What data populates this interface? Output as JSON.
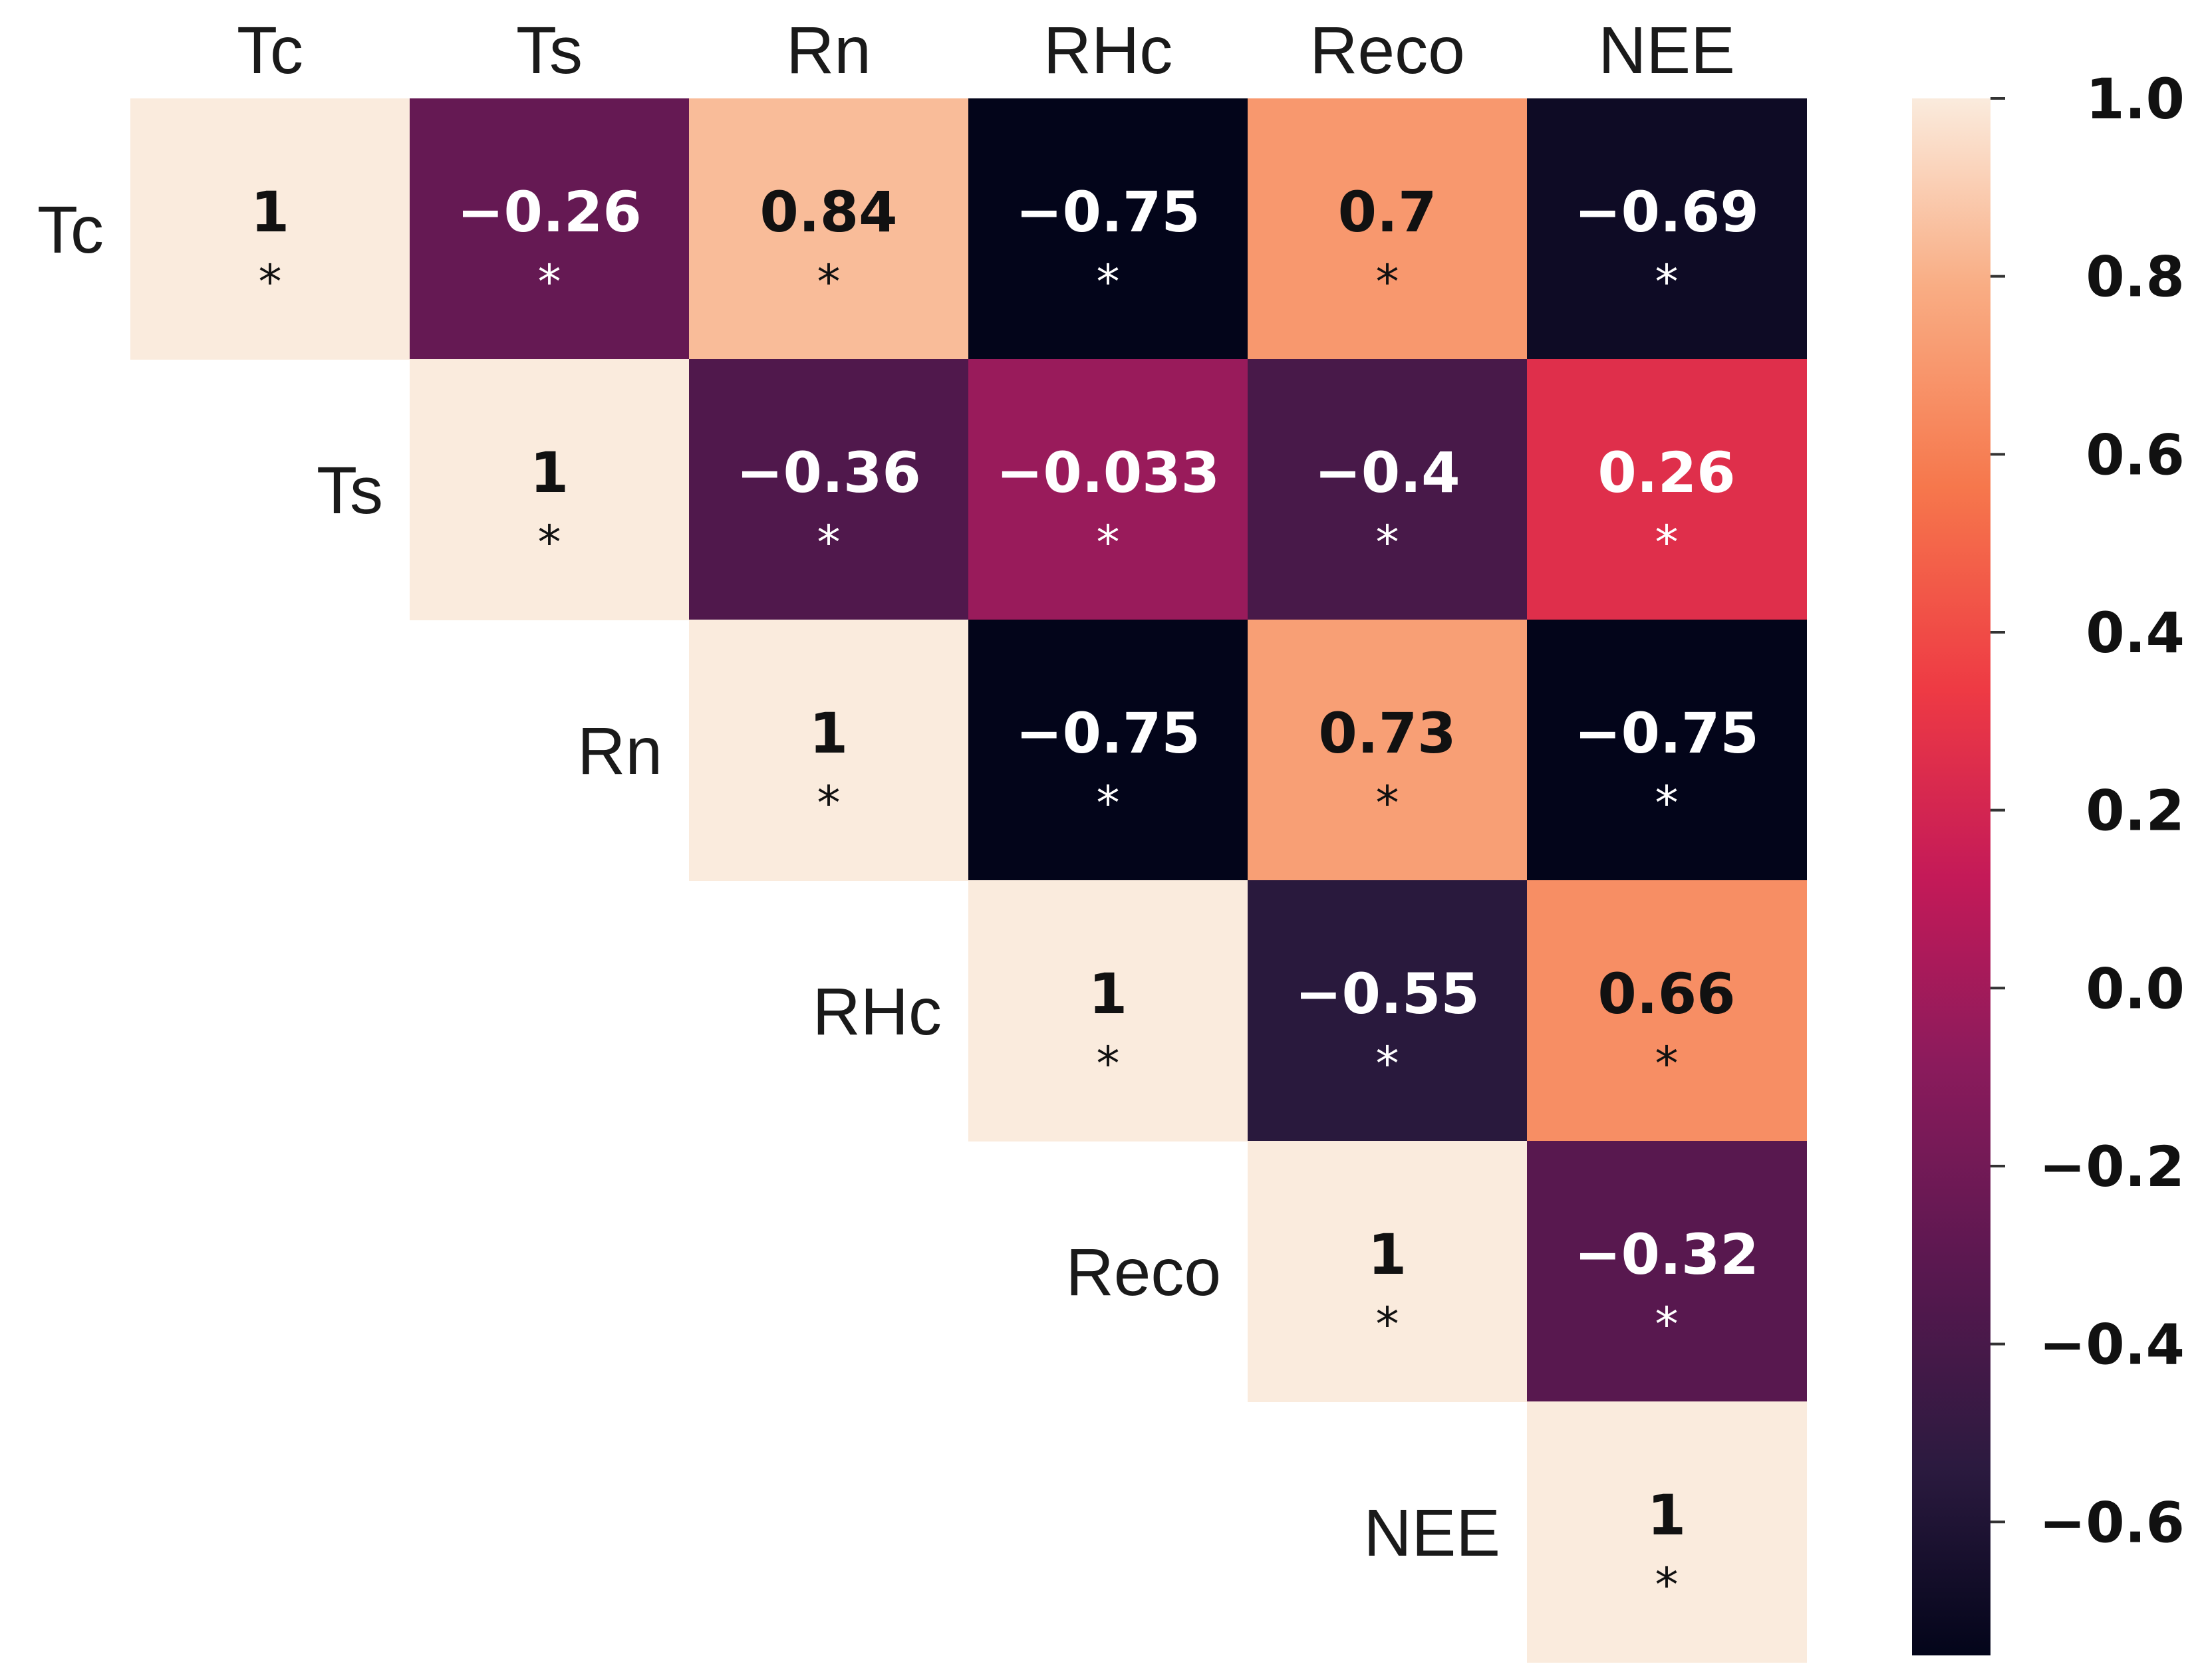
{
  "chart_data": {
    "type": "heatmap",
    "variables": [
      "Tc",
      "Ts",
      "Rn",
      "RHc",
      "Reco",
      "NEE"
    ],
    "matrix": [
      [
        "1",
        "−0.26",
        "0.84",
        "−0.75",
        "0.7",
        "−0.69"
      ],
      [
        null,
        "1",
        "−0.36",
        "−0.033",
        "−0.4",
        "0.26"
      ],
      [
        null,
        null,
        "1",
        "−0.75",
        "0.73",
        "−0.75"
      ],
      [
        null,
        null,
        null,
        "1",
        "−0.55",
        "0.66"
      ],
      [
        null,
        null,
        null,
        null,
        "1",
        "−0.32"
      ],
      [
        null,
        null,
        null,
        null,
        null,
        "1"
      ]
    ],
    "values": [
      [
        1,
        -0.26,
        0.84,
        -0.75,
        0.7,
        -0.69
      ],
      [
        null,
        1,
        -0.36,
        -0.033,
        -0.4,
        0.26
      ],
      [
        null,
        null,
        1,
        -0.75,
        0.73,
        -0.75
      ],
      [
        null,
        null,
        null,
        1,
        -0.55,
        0.66
      ],
      [
        null,
        null,
        null,
        null,
        1,
        -0.32
      ],
      [
        null,
        null,
        null,
        null,
        null,
        1
      ]
    ],
    "significance_marker": "*",
    "colorbar": {
      "colormap": "rocket",
      "vmin": -0.75,
      "vmax": 1.0,
      "ticks": [
        1.0,
        0.8,
        0.6,
        0.4,
        0.2,
        0.0,
        -0.2,
        -0.4,
        -0.6
      ],
      "tick_labels": [
        "1.0",
        "0.8",
        "0.6",
        "0.4",
        "0.2",
        "0.0",
        "−0.2",
        "−0.4",
        "−0.6"
      ]
    },
    "title": "",
    "xlabel": "",
    "ylabel": ""
  }
}
